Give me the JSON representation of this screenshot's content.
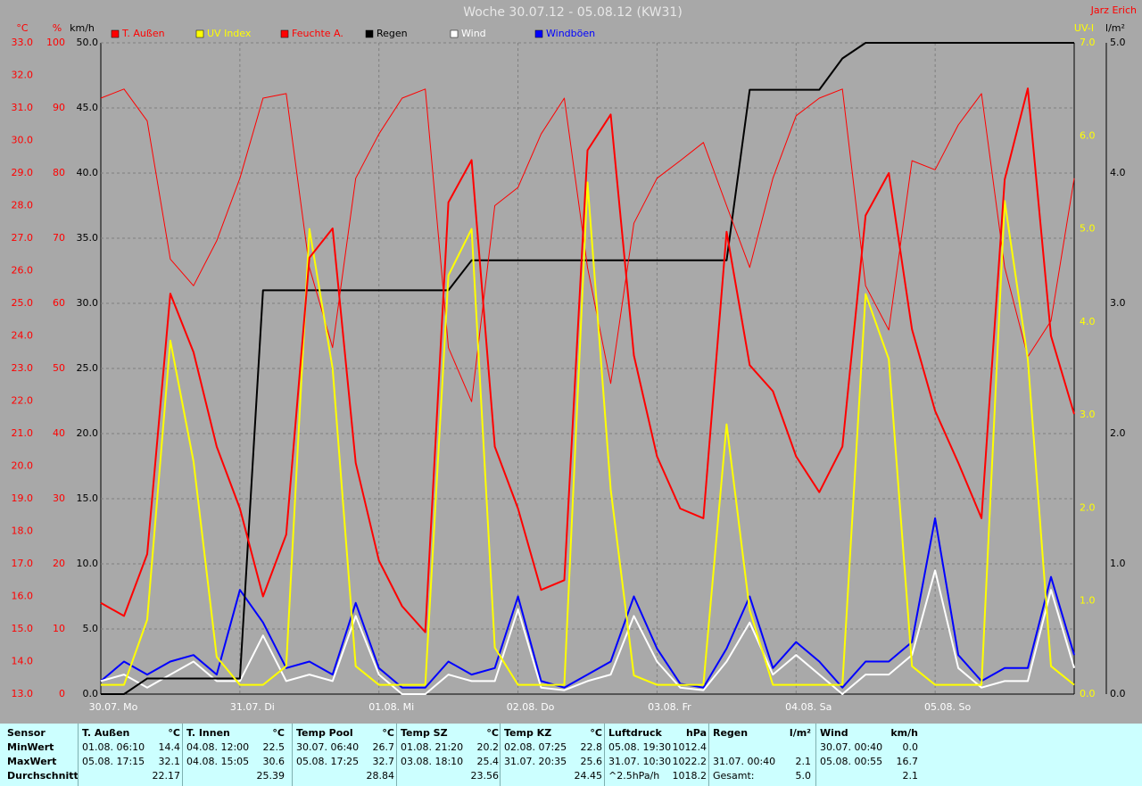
{
  "chart_data": {
    "type": "line",
    "title": "Woche 30.07.12 - 05.08.12 (KW31)",
    "author": "Jarz Erich",
    "x": [
      0,
      4,
      8,
      12,
      16,
      20,
      24,
      28,
      32,
      36,
      40,
      44,
      48,
      52,
      56,
      60,
      64,
      68,
      72,
      76,
      80,
      84,
      88,
      92,
      96,
      100,
      104,
      108,
      112,
      116,
      120,
      124,
      128,
      132,
      136,
      140,
      144,
      148,
      152,
      156,
      160,
      164,
      168
    ],
    "xlim": [
      0,
      168
    ],
    "xticks": [
      {
        "value": 0,
        "label": "30.07. Mo"
      },
      {
        "value": 24,
        "label": "31.07. Di"
      },
      {
        "value": 48,
        "label": "01.08. Mi"
      },
      {
        "value": 72,
        "label": "02.08. Do"
      },
      {
        "value": 96,
        "label": "03.08. Fr"
      },
      {
        "value": 120,
        "label": "04.08. Sa"
      },
      {
        "value": 144,
        "label": "05.08. So"
      }
    ],
    "grid": true,
    "grid_axis": 2,
    "axes": [
      {
        "label": "°C",
        "color": "#ff0000",
        "side": "left",
        "lim": [
          13,
          33
        ],
        "ticks": [
          {
            "value": 13,
            "label": "13.0"
          },
          {
            "value": 14,
            "label": "14.0"
          },
          {
            "value": 15,
            "label": "15.0"
          },
          {
            "value": 16,
            "label": "16.0"
          },
          {
            "value": 17,
            "label": "17.0"
          },
          {
            "value": 18,
            "label": "18.0"
          },
          {
            "value": 19,
            "label": "19.0"
          },
          {
            "value": 20,
            "label": "20.0"
          },
          {
            "value": 21,
            "label": "21.0"
          },
          {
            "value": 22,
            "label": "22.0"
          },
          {
            "value": 23,
            "label": "23.0"
          },
          {
            "value": 24,
            "label": "24.0"
          },
          {
            "value": 25,
            "label": "25.0"
          },
          {
            "value": 26,
            "label": "26.0"
          },
          {
            "value": 27,
            "label": "27.0"
          },
          {
            "value": 28,
            "label": "28.0"
          },
          {
            "value": 29,
            "label": "29.0"
          },
          {
            "value": 30,
            "label": "30.0"
          },
          {
            "value": 31,
            "label": "31.0"
          },
          {
            "value": 32,
            "label": "32.0"
          },
          {
            "value": 33,
            "label": "33.0"
          }
        ]
      },
      {
        "label": "%",
        "color": "#ff0000",
        "side": "left",
        "lim": [
          0,
          100
        ],
        "ticks": [
          0,
          10,
          20,
          30,
          40,
          50,
          60,
          70,
          80,
          90,
          100
        ]
      },
      {
        "label": "km/h",
        "color": "#000000",
        "side": "left",
        "lim": [
          0,
          50
        ],
        "ticks": [
          {
            "value": 0,
            "label": "0.0"
          },
          {
            "value": 5,
            "label": "5.0"
          },
          {
            "value": 10,
            "label": "10.0"
          },
          {
            "value": 15,
            "label": "15.0"
          },
          {
            "value": 20,
            "label": "20.0"
          },
          {
            "value": 25,
            "label": "25.0"
          },
          {
            "value": 30,
            "label": "30.0"
          },
          {
            "value": 35,
            "label": "35.0"
          },
          {
            "value": 40,
            "label": "40.0"
          },
          {
            "value": 45,
            "label": "45.0"
          },
          {
            "value": 50,
            "label": "50.0"
          }
        ]
      },
      {
        "label": "UV-I",
        "color": "#ffff00",
        "side": "right",
        "lim": [
          0,
          7
        ],
        "ticks": [
          {
            "value": 0,
            "label": "0.0"
          },
          {
            "value": 1,
            "label": "1.0"
          },
          {
            "value": 2,
            "label": "2.0"
          },
          {
            "value": 3,
            "label": "3.0"
          },
          {
            "value": 4,
            "label": "4.0"
          },
          {
            "value": 5,
            "label": "5.0"
          },
          {
            "value": 6,
            "label": "6.0"
          },
          {
            "value": 7,
            "label": "7.0"
          }
        ]
      },
      {
        "label": "l/m²",
        "color": "#000000",
        "side": "right",
        "lim": [
          0,
          5
        ],
        "ticks": [
          {
            "value": 0,
            "label": "0.0"
          },
          {
            "value": 1,
            "label": "1.0"
          },
          {
            "value": 2,
            "label": "2.0"
          },
          {
            "value": 3,
            "label": "3.0"
          },
          {
            "value": 4,
            "label": "4.0"
          },
          {
            "value": 5,
            "label": "5.0"
          }
        ]
      }
    ],
    "series": [
      {
        "name": "T. Außen",
        "color": "#ff0000",
        "axis": 0,
        "width": 2,
        "values": [
          15.8,
          15.4,
          17.3,
          25.3,
          23.5,
          20.6,
          18.7,
          16.0,
          17.9,
          26.4,
          27.3,
          20.1,
          17.1,
          15.7,
          14.9,
          28.1,
          29.4,
          20.6,
          18.7,
          16.2,
          16.5,
          29.7,
          30.8,
          23.4,
          20.3,
          18.7,
          18.4,
          27.2,
          23.1,
          22.3,
          20.3,
          19.2,
          20.6,
          27.7,
          29.0,
          24.2,
          21.7,
          20.1,
          18.4,
          28.8,
          31.6,
          24.0,
          21.6
        ]
      },
      {
        "name": "UV Index",
        "color": "#ffff00",
        "axis": 3,
        "width": 2,
        "values": [
          0.1,
          0.1,
          0.8,
          3.8,
          2.5,
          0.4,
          0.1,
          0.1,
          0.3,
          5.0,
          3.5,
          0.3,
          0.1,
          0.1,
          0.1,
          4.5,
          5.0,
          0.5,
          0.1,
          0.1,
          0.1,
          5.5,
          2.2,
          0.2,
          0.1,
          0.1,
          0.1,
          2.9,
          0.9,
          0.1,
          0.1,
          0.1,
          0.1,
          4.3,
          3.6,
          0.3,
          0.1,
          0.1,
          0.1,
          5.3,
          3.6,
          0.3,
          0.1
        ]
      },
      {
        "name": "Feuchte A.",
        "color": "#ff0000",
        "axis": 1,
        "width": 1,
        "values": [
          91.5,
          92.9,
          88,
          66.8,
          62.7,
          69.6,
          79.2,
          91.5,
          92.2,
          65.5,
          53.2,
          79.2,
          86,
          91.5,
          92.9,
          53.2,
          44.9,
          75,
          77.8,
          86,
          91.5,
          65.5,
          47.7,
          72.3,
          79.2,
          81.9,
          84.7,
          75,
          65.5,
          79.2,
          88.8,
          91.5,
          92.9,
          62.7,
          55.9,
          81.9,
          80.5,
          87.4,
          92.2,
          65.5,
          51.8,
          57.3,
          79.2
        ]
      },
      {
        "name": "Regen",
        "color": "#000000",
        "axis": 4,
        "width": 2,
        "values": [
          0,
          0,
          0.12,
          0.12,
          0.12,
          0.12,
          0.12,
          3.1,
          3.1,
          3.1,
          3.1,
          3.1,
          3.1,
          3.1,
          3.1,
          3.1,
          3.33,
          3.33,
          3.33,
          3.33,
          3.33,
          3.33,
          3.33,
          3.33,
          3.33,
          3.33,
          3.33,
          3.33,
          4.64,
          4.64,
          4.64,
          4.64,
          4.88,
          5.0,
          5.0,
          5.0,
          5.0,
          5.0,
          5.0,
          5.0,
          5.0,
          5.0,
          5.0
        ]
      },
      {
        "name": "Wind",
        "color": "#ffffff",
        "axis": 2,
        "width": 2,
        "values": [
          1.0,
          1.5,
          0.5,
          1.5,
          2.5,
          1.0,
          1.0,
          4.5,
          1.0,
          1.5,
          1.0,
          6.0,
          1.5,
          0,
          0,
          1.5,
          1.0,
          1.0,
          6.5,
          0.5,
          0.3,
          1.0,
          1.5,
          6.0,
          2.5,
          0.5,
          0.3,
          2.5,
          5.5,
          1.5,
          3.0,
          1.5,
          0,
          1.5,
          1.5,
          3.0,
          9.5,
          2.0,
          0.5,
          1.0,
          1.0,
          8.0,
          2.0
        ]
      },
      {
        "name": "Windböen",
        "color": "#0000ff",
        "axis": 2,
        "width": 2,
        "values": [
          1.0,
          2.5,
          1.5,
          2.5,
          3.0,
          1.5,
          8.0,
          5.5,
          2.0,
          2.5,
          1.5,
          7.0,
          2.0,
          0.5,
          0.5,
          2.5,
          1.5,
          2.0,
          7.5,
          1.0,
          0.5,
          1.5,
          2.5,
          7.5,
          3.5,
          0.8,
          0.5,
          3.5,
          7.5,
          2.0,
          4.0,
          2.5,
          0.5,
          2.5,
          2.5,
          4.0,
          13.5,
          3.0,
          1.0,
          2.0,
          2.0,
          9.0,
          3.0
        ]
      }
    ]
  },
  "table": {
    "labels": [
      "Sensor",
      "MinWert",
      "MaxWert",
      "Durchschnitt"
    ],
    "groups": [
      {
        "name": "T. Außen",
        "unit": "°C",
        "min": [
          "01.08. 06:10",
          "14.4"
        ],
        "max": [
          "05.08. 17:15",
          "32.1"
        ],
        "avg": [
          "22.17"
        ]
      },
      {
        "name": "T. Innen",
        "unit": "°C",
        "min": [
          "04.08. 12:00",
          "22.5"
        ],
        "max": [
          "04.08. 15:05",
          "30.6"
        ],
        "avg": [
          "25.39"
        ]
      },
      {
        "name": "Temp Pool",
        "unit": "°C",
        "min": [
          "30.07. 06:40",
          "26.7"
        ],
        "max": [
          "05.08. 17:25",
          "32.7"
        ],
        "avg": [
          "28.84"
        ]
      },
      {
        "name": "Temp SZ",
        "unit": "°C",
        "min": [
          "01.08. 21:20",
          "20.2"
        ],
        "max": [
          "03.08. 18:10",
          "25.4"
        ],
        "avg": [
          "23.56"
        ]
      },
      {
        "name": "Temp KZ",
        "unit": "°C",
        "min": [
          "02.08. 07:25",
          "22.8"
        ],
        "max": [
          "31.07. 20:35",
          "25.6"
        ],
        "avg": [
          "24.45"
        ]
      },
      {
        "name": "Luftdruck",
        "unit": "hPa",
        "min": [
          "05.08. 19:30",
          "1012.4"
        ],
        "max": [
          "31.07. 10:30",
          "1022.2"
        ],
        "avg": [
          "^2.5hPa/h",
          "1018.2"
        ]
      },
      {
        "name": "Regen",
        "unit": "l/m²",
        "max": [
          "31.07. 00:40",
          "2.1"
        ],
        "avg": [
          "Gesamt:",
          "5.0"
        ]
      },
      {
        "name": "Wind",
        "unit": "km/h",
        "min": [
          "30.07. 00:40",
          "0.0"
        ],
        "max": [
          "05.08. 00:55",
          "16.7"
        ],
        "avg": [
          "2.1"
        ]
      }
    ]
  }
}
